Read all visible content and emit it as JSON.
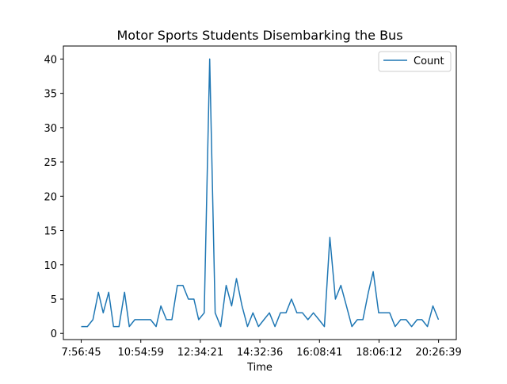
{
  "chart_data": {
    "type": "line",
    "title": "Motor Sports Students Disembarking the Bus",
    "xlabel": "Time",
    "ylabel": "",
    "ylim": [
      -0.9,
      41.9
    ],
    "y_ticks": [
      0,
      5,
      10,
      15,
      20,
      25,
      30,
      35,
      40
    ],
    "x_ticks": [
      "7:56:45",
      "10:54:59",
      "12:34:21",
      "14:32:36",
      "16:08:41",
      "18:06:12",
      "20:26:39"
    ],
    "legend": {
      "position": "top-right"
    },
    "grid": false,
    "series": [
      {
        "name": "Count",
        "color": "#1f77b4",
        "points": [
          {
            "t": 0.0,
            "y": 1
          },
          {
            "t": 0.9,
            "y": 1
          },
          {
            "t": 1.7,
            "y": 2
          },
          {
            "t": 2.5,
            "y": 6
          },
          {
            "t": 3.2,
            "y": 3
          },
          {
            "t": 4.0,
            "y": 6
          },
          {
            "t": 4.7,
            "y": 1
          },
          {
            "t": 5.5,
            "y": 1
          },
          {
            "t": 6.3,
            "y": 6
          },
          {
            "t": 7.0,
            "y": 1
          },
          {
            "t": 7.8,
            "y": 2
          },
          {
            "t": 8.6,
            "y": 2
          },
          {
            "t": 9.3,
            "y": 2
          },
          {
            "t": 10.1,
            "y": 2
          },
          {
            "t": 10.9,
            "y": 1
          },
          {
            "t": 11.6,
            "y": 4
          },
          {
            "t": 12.4,
            "y": 2
          },
          {
            "t": 13.2,
            "y": 2
          },
          {
            "t": 14.0,
            "y": 7
          },
          {
            "t": 14.8,
            "y": 7
          },
          {
            "t": 15.6,
            "y": 5
          },
          {
            "t": 16.4,
            "y": 5
          },
          {
            "t": 17.1,
            "y": 2
          },
          {
            "t": 17.9,
            "y": 3
          },
          {
            "t": 18.7,
            "y": 40
          },
          {
            "t": 19.5,
            "y": 3
          },
          {
            "t": 20.3,
            "y": 1
          },
          {
            "t": 21.1,
            "y": 7
          },
          {
            "t": 21.9,
            "y": 4
          },
          {
            "t": 22.6,
            "y": 8
          },
          {
            "t": 23.4,
            "y": 4
          },
          {
            "t": 24.2,
            "y": 1
          },
          {
            "t": 25.0,
            "y": 3
          },
          {
            "t": 25.8,
            "y": 1
          },
          {
            "t": 26.6,
            "y": 2
          },
          {
            "t": 27.4,
            "y": 3
          },
          {
            "t": 28.2,
            "y": 1
          },
          {
            "t": 29.0,
            "y": 3
          },
          {
            "t": 29.8,
            "y": 3
          },
          {
            "t": 30.6,
            "y": 5
          },
          {
            "t": 31.4,
            "y": 3
          },
          {
            "t": 32.2,
            "y": 3
          },
          {
            "t": 33.0,
            "y": 2
          },
          {
            "t": 33.8,
            "y": 3
          },
          {
            "t": 34.6,
            "y": 2
          },
          {
            "t": 35.4,
            "y": 1
          },
          {
            "t": 36.2,
            "y": 14
          },
          {
            "t": 37.0,
            "y": 5
          },
          {
            "t": 37.8,
            "y": 7
          },
          {
            "t": 38.6,
            "y": 4
          },
          {
            "t": 39.4,
            "y": 1
          },
          {
            "t": 40.2,
            "y": 2
          },
          {
            "t": 41.0,
            "y": 2
          },
          {
            "t": 41.8,
            "y": 6
          },
          {
            "t": 42.5,
            "y": 9
          },
          {
            "t": 43.3,
            "y": 3
          },
          {
            "t": 44.1,
            "y": 3
          },
          {
            "t": 44.9,
            "y": 3
          },
          {
            "t": 45.7,
            "y": 1
          },
          {
            "t": 46.5,
            "y": 2
          },
          {
            "t": 47.3,
            "y": 2
          },
          {
            "t": 48.1,
            "y": 1
          },
          {
            "t": 48.9,
            "y": 2
          },
          {
            "t": 49.6,
            "y": 2
          },
          {
            "t": 50.4,
            "y": 1
          },
          {
            "t": 51.2,
            "y": 4
          },
          {
            "t": 52.0,
            "y": 2
          }
        ]
      }
    ]
  }
}
